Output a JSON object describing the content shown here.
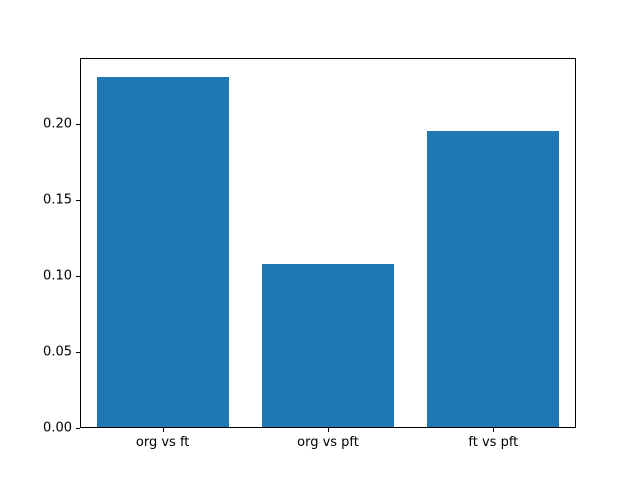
{
  "chart_data": {
    "type": "bar",
    "title": "",
    "xlabel": "",
    "ylabel": "",
    "categories": [
      "org vs ft",
      "org vs pft",
      "ft vs pft"
    ],
    "values": [
      0.232,
      0.108,
      0.196
    ],
    "ylim": [
      0,
      0.2436
    ],
    "yticks": [
      {
        "value": 0.0,
        "label": "0.00"
      },
      {
        "value": 0.05,
        "label": "0.05"
      },
      {
        "value": 0.1,
        "label": "0.10"
      },
      {
        "value": 0.15,
        "label": "0.15"
      },
      {
        "value": 0.2,
        "label": "0.20"
      }
    ],
    "bar_color": "#1f77b4",
    "bar_width_fraction": 0.8,
    "background": "#ffffff",
    "grid": false,
    "legend": "none"
  }
}
